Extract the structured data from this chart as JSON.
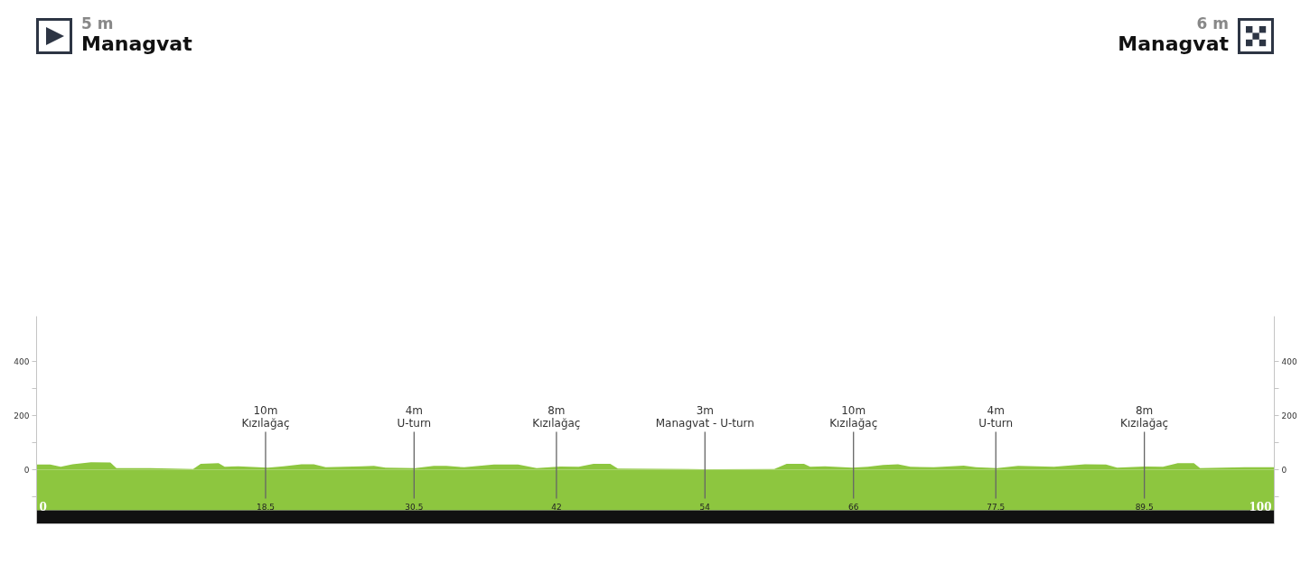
{
  "chart_data": {
    "type": "area",
    "annotations": [
      "5 m\nManagvat",
      "6 m\nManagvat"
    ],
    "x": [
      0,
      1.1,
      1.95,
      2.9,
      4.4,
      5.96,
      6.45,
      9.2,
      12.65,
      13.26,
      14.7,
      15.2,
      16.3,
      18.7,
      19.95,
      21.4,
      22.4,
      23.36,
      26.3,
      27.25,
      28.2,
      30.6,
      32.1,
      33.1,
      34.55,
      36.95,
      38.9,
      40.4,
      42.3,
      43.8,
      45.0,
      46.35,
      46.96,
      54.0,
      59.6,
      60.6,
      62.0,
      62.5,
      63.7,
      65.9,
      67.15,
      68.4,
      69.6,
      70.6,
      72.5,
      74.9,
      75.9,
      77.6,
      79.3,
      80.8,
      82.2,
      84.7,
      86.4,
      87.3,
      89.5,
      91.0,
      92.2,
      93.5,
      94.0,
      97.6,
      100
    ],
    "series": [
      {
        "color": "#8dc63f",
        "values": [
          19,
          19,
          11,
          20,
          28,
          27,
          6,
          6,
          3,
          22,
          24,
          11,
          13,
          8,
          13,
          20,
          20,
          9,
          13,
          14,
          8,
          6,
          14,
          14,
          9,
          19,
          19,
          6,
          12,
          11,
          22,
          22,
          4,
          2,
          3,
          22,
          22,
          11,
          13,
          8,
          11,
          18,
          20,
          11,
          9,
          15,
          9,
          6,
          14,
          13,
          11,
          20,
          19,
          8,
          12,
          11,
          24,
          24,
          6,
          9,
          9
        ]
      }
    ],
    "xlim": [
      0,
      100
    ],
    "xticks": [
      0,
      18.5,
      30.5,
      42,
      54,
      66,
      77.5,
      89.5,
      100
    ],
    "ylim": [
      -200,
      567
    ],
    "yticks": [
      {
        "value": -100,
        "label": null
      },
      0,
      {
        "value": 100,
        "label": null
      },
      200,
      {
        "value": 300,
        "label": null
      },
      400
    ],
    "y2lim": [
      -200,
      567
    ],
    "y2ticks": [
      {
        "value": -100,
        "label": null
      },
      0,
      {
        "value": 100,
        "label": null
      },
      200,
      {
        "value": 300,
        "label": null
      },
      400
    ],
    "ref_lines": [
      {
        "axis": "x",
        "value": 18.5,
        "label": "10m\nKızılağaç",
        "color": "#666666"
      },
      {
        "axis": "x",
        "value": 30.5,
        "label": "4m\nU-turn",
        "color": "#666666"
      },
      {
        "axis": "x",
        "value": 42,
        "label": "8m\nKızılağaç",
        "color": "#666666"
      },
      {
        "axis": "x",
        "value": 54,
        "label": "3m\nManagvat - U-turn",
        "color": "#666666"
      },
      {
        "axis": "x",
        "value": 66,
        "label": "10m\nKızılağaç",
        "color": "#666666"
      },
      {
        "axis": "x",
        "value": 77.5,
        "label": "4m\nU-turn",
        "color": "#666666"
      },
      {
        "axis": "x",
        "value": 89.5,
        "label": "8m\nKızılağaç",
        "color": "#666666"
      }
    ],
    "bands": [
      {
        "axis": "y",
        "from": -150,
        "to": 0,
        "color": "#8dc63f"
      },
      {
        "axis": "y",
        "from": -200,
        "to": -150,
        "color": "#111111"
      }
    ]
  }
}
